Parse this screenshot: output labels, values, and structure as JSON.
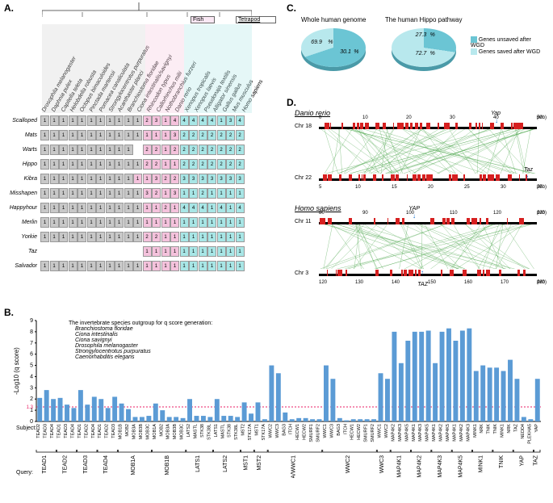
{
  "panels": {
    "A": "A.",
    "B": "B.",
    "C": "C.",
    "D": "D."
  },
  "panelA": {
    "fish_label": "Fish",
    "tetrapod_label": "Tetrapod",
    "species": [
      "Drosophila melanogaster",
      "Daphnia pulex",
      "Capitella teleta",
      "Helobdella robusta",
      "Octopus bimaculoides",
      "Pinctada martensii",
      "Pomacea canaliculata",
      "Strongylocentrotus purpuratus",
      "Acanthaster planci",
      "Branchiostoma floridae",
      "Ciona intestinalis/savignyi",
      "Rhincodon typus",
      "Callorhinchus milii",
      "Nothobranchius furzeri",
      "Danio rerio",
      "Xenopus tropicalis",
      "Xenopus laevis",
      "Pseudonaja textilis",
      "Alligator sinensis",
      "Gallus gallus",
      "Mus musculus",
      "Homo sapiens"
    ],
    "genes": [
      "Scalloped",
      "Mats",
      "Warts",
      "Hippo",
      "Kibra",
      "Misshapen",
      "Happyhour",
      "Merlin",
      "Yorkie",
      "Taz",
      "Salvador"
    ],
    "matrix": [
      [
        "g",
        "g",
        "g",
        "g",
        "g",
        "g",
        "g",
        "g",
        "g",
        "g",
        "g",
        "p2",
        "p3",
        "p",
        "p4",
        "c4",
        "c4",
        "c4",
        "c4",
        "c",
        "c3",
        "c4"
      ],
      [
        "g",
        "g",
        "g",
        "g",
        "g",
        "g",
        "g",
        "g",
        "g",
        "g",
        "g",
        "p",
        "p",
        "p",
        "p3",
        "c2",
        "c2",
        "c2",
        "c2",
        "c2",
        "c2",
        "c2"
      ],
      [
        "g",
        "g",
        "g",
        "g",
        "g",
        "g",
        "g",
        "g",
        "g",
        "g",
        "n",
        "p2",
        "p2",
        "p",
        "p2",
        "c2",
        "c2",
        "c2",
        "c2",
        "c2",
        "c2",
        "c2"
      ],
      [
        "g",
        "g",
        "g",
        "g",
        "g",
        "g",
        "g",
        "g",
        "g",
        "g",
        "g",
        "p2",
        "p2",
        "p",
        "p",
        "c2",
        "c2",
        "c2",
        "c2",
        "c2",
        "c2",
        "c2"
      ],
      [
        "g",
        "g",
        "g",
        "g",
        "g",
        "g",
        "g",
        "g",
        "g",
        "g",
        "p",
        "p",
        "p3",
        "p2",
        "p2",
        "c3",
        "c3",
        "c3",
        "c3",
        "c3",
        "c3",
        "c3"
      ],
      [
        "g",
        "g",
        "g",
        "g",
        "g",
        "g",
        "g",
        "g",
        "g",
        "g",
        "g",
        "p3",
        "p2",
        "p",
        "p3",
        "c",
        "c",
        "c2",
        "c",
        "c",
        "c",
        "c"
      ],
      [
        "g",
        "g",
        "g",
        "g",
        "g",
        "g",
        "g",
        "g",
        "g",
        "g",
        "g",
        "p",
        "p",
        "p2",
        "p",
        "c4",
        "c4",
        "c4",
        "c",
        "c4",
        "c",
        "c4"
      ],
      [
        "g",
        "g",
        "g",
        "g",
        "g",
        "g",
        "g",
        "g",
        "g",
        "g",
        "g",
        "p",
        "p",
        "p",
        "p",
        "c",
        "c",
        "c",
        "c",
        "c",
        "c",
        "c"
      ],
      [
        "g",
        "g",
        "g",
        "g",
        "g",
        "g",
        "g",
        "g",
        "g",
        "g",
        "g",
        "p2",
        "p2",
        "p",
        "p",
        "c",
        "c",
        "c",
        "c",
        "c",
        "c",
        "c"
      ],
      [
        "n",
        "n",
        "n",
        "n",
        "n",
        "n",
        "n",
        "n",
        "n",
        "n",
        "n",
        "p",
        "p",
        "p",
        "p",
        "c",
        "c",
        "c",
        "c",
        "c",
        "c",
        "c"
      ],
      [
        "g",
        "g",
        "g",
        "g",
        "g",
        "g",
        "g",
        "g",
        "g",
        "g",
        "g",
        "p",
        "p",
        "p",
        "p",
        "c",
        "c",
        "c",
        "c",
        "c",
        "c",
        "c"
      ]
    ]
  },
  "panelC": {
    "title1": "Whole human genome",
    "title2": "The human Hippo pathway",
    "pie1": {
      "saved": 30.1,
      "unsaved": 69.9
    },
    "pie2": {
      "saved": 72.7,
      "unsaved": 27.3
    },
    "legend_unsaved": "Genes unsaved after WGD",
    "legend_saved": "Genes saved after WGD",
    "color_unsaved": "#6bc5d4",
    "color_saved": "#b8e8ed"
  },
  "panelD": {
    "danio": {
      "title": "Danio rerio",
      "chr1": "Chr 18",
      "chr2": "Chr 22",
      "scale1": [
        0,
        10,
        20,
        30,
        40,
        50
      ],
      "scale2": [
        5,
        10,
        15,
        20,
        25,
        30,
        35
      ],
      "gene1": "Yap",
      "gene2": "Taz",
      "unit": "(Mb)"
    },
    "homo": {
      "title": "Homo sapiens",
      "chr1": "Chr 11",
      "chr2": "Chr 3",
      "scale1": [
        80,
        90,
        100,
        110,
        120,
        130
      ],
      "scale2": [
        120,
        130,
        140,
        150,
        160,
        170,
        180
      ],
      "gene1": "YAP",
      "gene2": "TAZ",
      "unit": "(Mb)"
    },
    "syn_color": "#4ca64c",
    "mark_color": "#d62020"
  },
  "panelB": {
    "outgroup_title": "The invertebrate species outgroup for q score generation:",
    "outgroup_species": [
      "Branchiostoma floridae",
      "Ciona intestinalis",
      "Ciona savignyi",
      "Drosophila melanogaster",
      "Strongylocentrotus purpuratus",
      "Caenorhabditis elegans"
    ],
    "ylabel": "-Log10 (q score)",
    "xlabel_subject": "Subject:",
    "xlabel_query": "Query:",
    "threshold": 1.3,
    "ymax": 9,
    "bar_color": "#5B9BD5",
    "subjects": [
      "TEAD2",
      "TEAD3",
      "TEAD4",
      "TEAD1",
      "TEAD3",
      "TEAD4",
      "TEAD1",
      "TEAD2",
      "TEAD4",
      "TEAD1",
      "TEAD2",
      "TEAD3",
      "MOB1B",
      "MOB2",
      "MOB3A",
      "MOB3B",
      "MOB3C",
      "MOB1A",
      "MOB2",
      "MOB3A",
      "MOB3B",
      "MOB3C",
      "LATS2",
      "MASTL",
      "STK38",
      "STK38L",
      "LATS1",
      "MASTL",
      "STK38",
      "STK38L",
      "MST2",
      "STK17A",
      "MST1",
      "STK17A",
      "WWC2",
      "WWC3",
      "BAG3",
      "ITCH",
      "HECW1",
      "HECW2",
      "SMURF1",
      "SMURF2",
      "WWC1",
      "WWC3",
      "BAG3",
      "ITCH",
      "HECW1",
      "HECW2",
      "SMURF1",
      "SMURF2",
      "WWC1",
      "WWC2",
      "MAP4K2",
      "MAP4K3",
      "MAP4K5",
      "MAP4K1",
      "MAP4K3",
      "MAP4K5",
      "MAP4K1",
      "MAP4K2",
      "MAP4K5",
      "MAP4K1",
      "MAP4K2",
      "MAP4K3",
      "MINK1",
      "NRK",
      "TNIK",
      "TNIK",
      "MINK1",
      "NRK",
      "TAZ",
      "NEDD4",
      "PLEKHA5",
      "YAP"
    ],
    "values": [
      2.1,
      2.8,
      2.0,
      2.1,
      1.5,
      1.2,
      2.8,
      1.5,
      2.2,
      2.0,
      1.2,
      2.2,
      1.6,
      1.1,
      0.4,
      0.4,
      0.5,
      1.6,
      1.0,
      0.4,
      0.4,
      0.3,
      2.0,
      0.5,
      0.5,
      0.4,
      2.0,
      0.5,
      0.5,
      0.4,
      1.7,
      0.7,
      1.7,
      0.2,
      5.0,
      4.3,
      0.8,
      0.2,
      0.3,
      0.3,
      0.2,
      0.2,
      5.0,
      3.8,
      0.3,
      0.1,
      0.2,
      0.2,
      0.2,
      0.2,
      4.3,
      3.8,
      8.0,
      5.2,
      7.2,
      8.0,
      8.0,
      8.1,
      5.2,
      8.0,
      8.3,
      7.2,
      8.1,
      8.3,
      4.5,
      5.0,
      4.8,
      4.8,
      4.5,
      5.5,
      3.8,
      0.4,
      0.2,
      3.8
    ],
    "queries": [
      "TEAD1",
      "TEAD2",
      "TEAD3",
      "TEAD4",
      "MOB1A",
      "MOB1B",
      "LATS1",
      "LATS2",
      "MST1",
      "MST2",
      "KIBRA/WWC1",
      "WWC2",
      "WWC3",
      "MAP4K1",
      "MAP4K2",
      "MAP4K3",
      "MAP4K5",
      "MINK1",
      "TNIK",
      "YAP",
      "TAZ"
    ],
    "query_spans": [
      3,
      3,
      3,
      3,
      5,
      5,
      4,
      4,
      2,
      2,
      8,
      8,
      2,
      3,
      3,
      3,
      3,
      3,
      3,
      3,
      1
    ]
  }
}
